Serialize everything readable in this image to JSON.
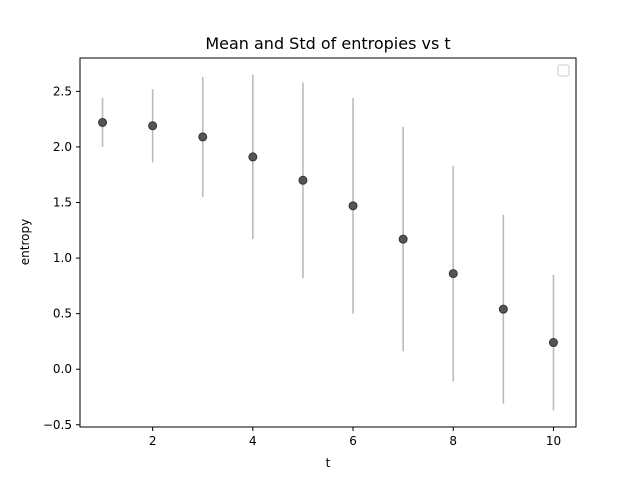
{
  "chart_data": {
    "type": "scatter",
    "title": "Mean and Std of entropies vs t",
    "xlabel": "t",
    "ylabel": "entropy",
    "xlim": [
      0.55,
      10.45
    ],
    "ylim": [
      -0.52,
      2.8
    ],
    "xticks": [
      2,
      4,
      6,
      8,
      10
    ],
    "yticks": [
      -0.5,
      0.0,
      0.5,
      1.0,
      1.5,
      2.0,
      2.5
    ],
    "xtick_labels": [
      "2",
      "4",
      "6",
      "8",
      "10"
    ],
    "ytick_labels": [
      "−0.5",
      "0.0",
      "0.5",
      "1.0",
      "1.5",
      "2.0",
      "2.5"
    ],
    "grid": false,
    "legend": {
      "placement": "top-right",
      "entries": []
    },
    "series": [
      {
        "x": [
          1,
          2,
          3,
          4,
          5,
          6,
          7,
          8,
          9,
          10
        ],
        "mean": [
          2.22,
          2.19,
          2.09,
          1.91,
          1.7,
          1.47,
          1.17,
          0.86,
          0.54,
          0.24
        ],
        "std": [
          0.22,
          0.33,
          0.54,
          0.74,
          0.88,
          0.97,
          1.01,
          0.97,
          0.85,
          0.61
        ],
        "marker_color": "#555555",
        "marker_edge_color": "#333333",
        "errorbar_color": "#bbbbbb"
      }
    ]
  }
}
